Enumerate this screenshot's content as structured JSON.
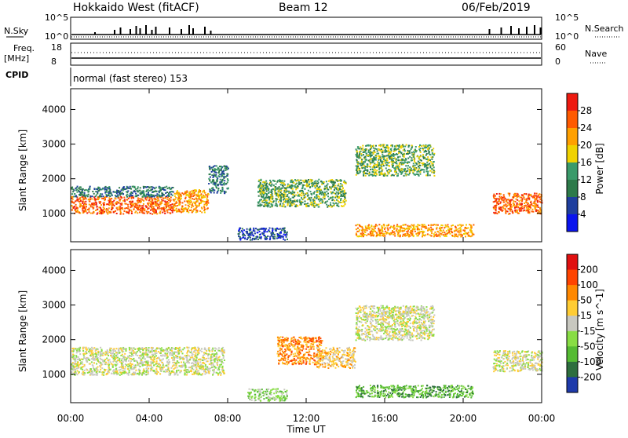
{
  "header": {
    "radar": "Hokkaido West (fitACF)",
    "beam": "Beam 12",
    "date": "06/Feb/2019"
  },
  "top_panels": {
    "nsky_label": "N.Sky",
    "nsky_ticks": [
      "10^5",
      "10^0"
    ],
    "nsearch_label": "N.Search",
    "nsearch_ticks": [
      "10^5",
      "10^0"
    ],
    "freq_label_1": "Freq.",
    "freq_label_2": "[MHz]",
    "freq_ticks": [
      "18",
      "8"
    ],
    "nave_label": "Nave",
    "nave_ticks": [
      "60",
      "0"
    ],
    "cpid_label": "CPID",
    "cpid_text": "normal (fast stereo) 153"
  },
  "colors": {
    "power_scale": [
      "#0a14ee",
      "#1f3f9e",
      "#2d7a4a",
      "#3a9a6a",
      "#f0d200",
      "#ffa000",
      "#ff5a00",
      "#ee1a10"
    ],
    "velocity_scale": [
      "#1e3aaa",
      "#2e6e3e",
      "#55bb33",
      "#88dd44",
      "#c8c8c0",
      "#ffcc33",
      "#ff8800",
      "#ff4400",
      "#e01010"
    ]
  },
  "chart_data": [
    {
      "type": "heatmap",
      "name": "power",
      "xlabel": "Time UT",
      "ylabel": "Slant Range [km]",
      "x_ticks": [
        "00:00",
        "04:00",
        "08:00",
        "12:00",
        "16:00",
        "20:00",
        "00:00"
      ],
      "x_range_hours": [
        0,
        24
      ],
      "y_ticks": [
        1000,
        2000,
        3000,
        4000
      ],
      "y_range_km": [
        180,
        4600
      ],
      "colorbar_label": "Power [dB]",
      "colorbar_ticks": [
        "28",
        "24",
        "20",
        "16",
        "12",
        "8",
        "4"
      ],
      "regions": [
        {
          "t": [
            0,
            5.2
          ],
          "r": [
            1000,
            1500
          ],
          "level": 6
        },
        {
          "t": [
            0,
            5.2
          ],
          "r": [
            1500,
            1800
          ],
          "level": 2
        },
        {
          "t": [
            5.2,
            7.0
          ],
          "r": [
            1050,
            1700
          ],
          "level": 5
        },
        {
          "t": [
            7.0,
            8.0
          ],
          "r": [
            1600,
            2400
          ],
          "level": 2
        },
        {
          "t": [
            8.5,
            11.0
          ],
          "r": [
            250,
            600
          ],
          "level": 1
        },
        {
          "t": [
            9.5,
            14.0
          ],
          "r": [
            1200,
            2000
          ],
          "level": 3
        },
        {
          "t": [
            14.5,
            20.5
          ],
          "r": [
            350,
            700
          ],
          "level": 5
        },
        {
          "t": [
            14.5,
            18.5
          ],
          "r": [
            2100,
            3000
          ],
          "level": 3
        },
        {
          "t": [
            21.5,
            24
          ],
          "r": [
            1000,
            1600
          ],
          "level": 6
        }
      ]
    },
    {
      "type": "heatmap",
      "name": "velocity",
      "xlabel": "Time UT",
      "ylabel": "Slant Range [km]",
      "x_ticks": [
        "00:00",
        "04:00",
        "08:00",
        "12:00",
        "16:00",
        "20:00",
        "00:00"
      ],
      "x_range_hours": [
        0,
        24
      ],
      "y_ticks": [
        1000,
        2000,
        3000,
        4000
      ],
      "y_range_km": [
        180,
        4600
      ],
      "colorbar_label": "Velocity [m s^-1]",
      "colorbar_ticks": [
        "200",
        "100",
        "50",
        "15",
        "-15",
        "-50",
        "-100",
        "-200"
      ],
      "regions": [
        {
          "t": [
            0,
            7.8
          ],
          "r": [
            1000,
            1800
          ],
          "level": 4
        },
        {
          "t": [
            10.5,
            12.8
          ],
          "r": [
            1300,
            2100
          ],
          "level": 6
        },
        {
          "t": [
            12.5,
            14.5
          ],
          "r": [
            1200,
            1800
          ],
          "level": 5
        },
        {
          "t": [
            9.0,
            11.0
          ],
          "r": [
            250,
            600
          ],
          "level": 3
        },
        {
          "t": [
            14.5,
            20.5
          ],
          "r": [
            350,
            700
          ],
          "level": 2
        },
        {
          "t": [
            14.5,
            18.5
          ],
          "r": [
            2000,
            3000
          ],
          "level": 4
        },
        {
          "t": [
            21.5,
            24
          ],
          "r": [
            1100,
            1700
          ],
          "level": 4
        }
      ]
    }
  ]
}
